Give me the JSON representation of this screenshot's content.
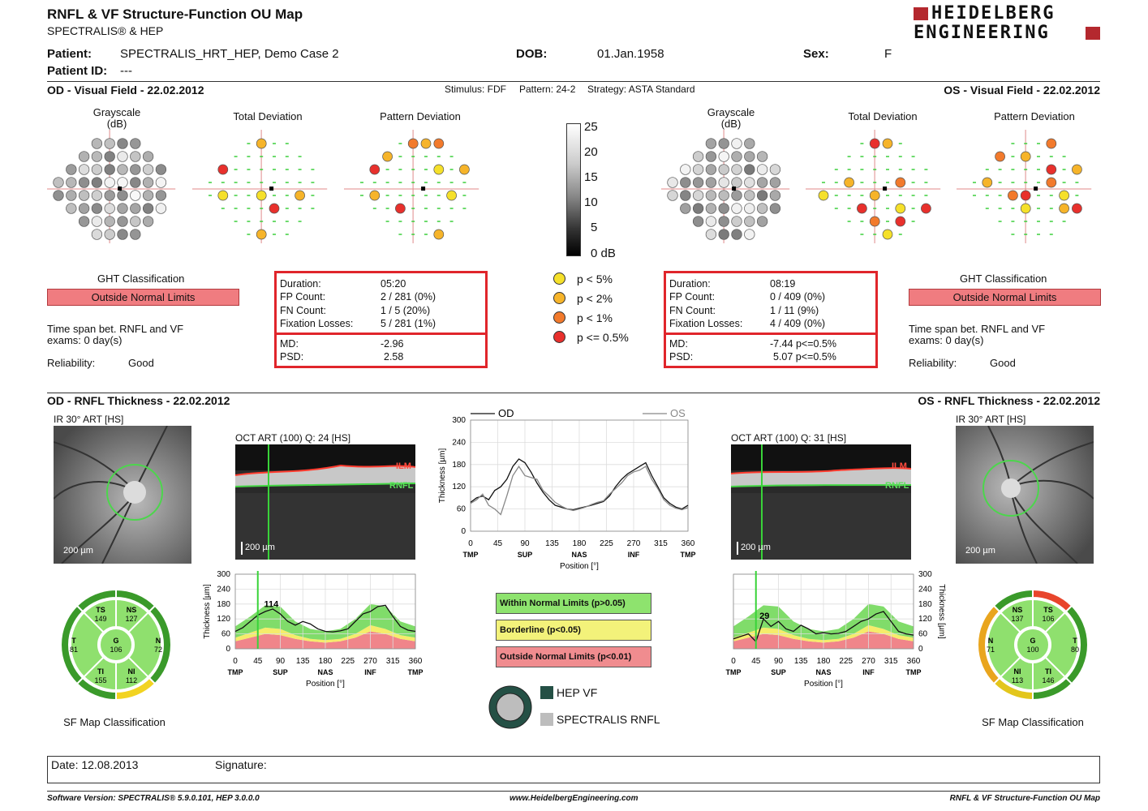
{
  "header": {
    "title": "RNFL & VF Structure-Function OU Map",
    "subtitle": "SPECTRALIS® & HEP",
    "logo_line1": "HEIDELBERG",
    "logo_line2": "ENGINEERING"
  },
  "patient": {
    "patient_label": "Patient:",
    "patient_value": "SPECTRALIS_HRT_HEP, Demo Case 2",
    "dob_label": "DOB:",
    "dob_value": "01.Jan.1958",
    "sex_label": "Sex:",
    "sex_value": "F",
    "id_label": "Patient ID:",
    "id_value": "---"
  },
  "vf_section": {
    "od_title": "OD - Visual Field - 22.02.2012",
    "os_title": "OS - Visual Field - 22.02.2012",
    "stimulus": "Stimulus: FDF",
    "pattern": "Pattern: 24-2",
    "strategy": "Strategy: ASTA Standard",
    "grayscale": "Grayscale",
    "grayscale_unit": "(dB)",
    "total_deviation": "Total Deviation",
    "pattern_deviation": "Pattern Deviation",
    "scale_labels": [
      "25",
      "20",
      "15",
      "10",
      "5",
      "0 dB"
    ]
  },
  "od_vf": {
    "ght_label": "GHT Classification",
    "ght_value": "Outside Normal Limits",
    "time_span": "Time span bet. RNFL and VF",
    "time_span_value": "exams: 0 day(s)",
    "reliability_label": "Reliability:",
    "reliability_value": "Good",
    "duration_label": "Duration:",
    "duration_value": "05:20",
    "fp_label": "FP Count:",
    "fp_value": "2 / 281  (0%)",
    "fn_label": "FN Count:",
    "fn_value": "1 / 5  (20%)",
    "fix_label": "Fixation Losses:",
    "fix_value": "5 / 281  (1%)",
    "md_label": "MD:",
    "md_value": "-2.96",
    "psd_label": "PSD:",
    "psd_value": "2.58"
  },
  "os_vf": {
    "ght_label": "GHT Classification",
    "ght_value": "Outside Normal Limits",
    "time_span": "Time span bet. RNFL and VF",
    "time_span_value": "exams: 0 day(s)",
    "reliability_label": "Reliability:",
    "reliability_value": "Good",
    "duration_label": "Duration:",
    "duration_value": "08:19",
    "fp_label": "FP Count:",
    "fp_value": "0 / 409  (0%)",
    "fn_label": "FN Count:",
    "fn_value": "1 / 11  (9%)",
    "fix_label": "Fixation Losses:",
    "fix_value": "4 / 409  (0%)",
    "md_label": "MD:",
    "md_value": "-7.44 p<=0.5%",
    "psd_label": "PSD:",
    "psd_value": "5.07 p<=0.5%"
  },
  "p_legend": [
    {
      "label": "p < 5%",
      "color": "#f5e02a"
    },
    {
      "label": "p < 2%",
      "color": "#f6b42a"
    },
    {
      "label": "p < 1%",
      "color": "#f27a2c"
    },
    {
      "label": "p <= 0.5%",
      "color": "#e8302c"
    }
  ],
  "rnfl_section": {
    "od_title": "OD - RNFL Thickness - 22.02.2012",
    "os_title": "OS - RNFL Thickness - 22.02.2012",
    "ir_label_od": "IR 30° ART [HS]",
    "ir_label_os": "IR 30° ART [HS]",
    "oct_label_od": "OCT ART (100) Q: 24 [HS]",
    "oct_label_os": "OCT ART (100) Q: 31 [HS]",
    "scale_bar": "200 µm",
    "ilm": "ILM",
    "rnfl": "RNFL",
    "y_axis": "Thickness [µm]",
    "x_axis": "Position [°]",
    "y_ticks": [
      "0",
      "60",
      "120",
      "180",
      "240",
      "300"
    ],
    "x_ticks": [
      "0",
      "45",
      "90",
      "135",
      "180",
      "225",
      "270",
      "315",
      "360"
    ],
    "sector_labels": [
      "TMP",
      "SUP",
      "NAS",
      "INF",
      "TMP"
    ],
    "od_peak": "114",
    "os_peak": "29",
    "legend_od": "OD",
    "legend_os": "OS"
  },
  "classification_legend": [
    {
      "label": "Within Normal Limits (p>0.05)",
      "color": "#8ee36e"
    },
    {
      "label": "Borderline (p<0.05)",
      "color": "#f3f27a"
    },
    {
      "label": "Outside Normal Limits (p<0.01)",
      "color": "#f08c8f"
    }
  ],
  "hep_legend": {
    "hep_vf": "HEP VF",
    "spectralis_rnfl": "SPECTRALIS RNFL",
    "hep_color": "#245045",
    "rnfl_color": "#bdbdbd"
  },
  "sf_od": {
    "caption": "SF Map Classification",
    "sectors": {
      "TS": {
        "label": "TS",
        "value": "149"
      },
      "NS": {
        "label": "NS",
        "value": "127"
      },
      "T": {
        "label": "T",
        "value": "81"
      },
      "G": {
        "label": "G",
        "value": "106"
      },
      "N": {
        "label": "N",
        "value": "72"
      },
      "TI": {
        "label": "TI",
        "value": "155"
      },
      "NI": {
        "label": "NI",
        "value": "112"
      }
    }
  },
  "sf_os": {
    "caption": "SF Map Classification",
    "sectors": {
      "NS": {
        "label": "NS",
        "value": "137"
      },
      "TS": {
        "label": "TS",
        "value": "106"
      },
      "N": {
        "label": "N",
        "value": "71"
      },
      "G": {
        "label": "G",
        "value": "100"
      },
      "T": {
        "label": "T",
        "value": "80"
      },
      "NI": {
        "label": "NI",
        "value": "113"
      },
      "TI": {
        "label": "TI",
        "value": "146"
      }
    }
  },
  "footer": {
    "date": "Date: 12.08.2013",
    "signature": "Signature:",
    "software": "Software Version: SPECTRALIS® 5.9.0.101, HEP 3.0.0.0",
    "website": "www.HeidelbergEngineering.com",
    "report_name": "RNFL & VF Structure-Function OU Map"
  },
  "chart_data": [
    {
      "type": "line",
      "title": "",
      "xlabel": "Position [°]",
      "ylabel": "Thickness [µm]",
      "xlim": [
        0,
        360
      ],
      "ylim": [
        0,
        300
      ],
      "series": [
        {
          "name": "OD",
          "x": [
            0,
            10,
            20,
            30,
            40,
            50,
            60,
            70,
            80,
            90,
            100,
            110,
            120,
            130,
            140,
            150,
            160,
            170,
            180,
            190,
            200,
            210,
            220,
            230,
            240,
            250,
            260,
            270,
            280,
            290,
            300,
            310,
            320,
            330,
            340,
            350,
            360
          ],
          "values": [
            78,
            90,
            95,
            85,
            110,
            120,
            140,
            175,
            195,
            185,
            160,
            130,
            105,
            85,
            70,
            65,
            60,
            58,
            62,
            66,
            70,
            75,
            80,
            95,
            120,
            140,
            155,
            165,
            175,
            185,
            150,
            120,
            90,
            75,
            65,
            60,
            70
          ]
        },
        {
          "name": "OS",
          "x": [
            0,
            10,
            20,
            30,
            40,
            50,
            60,
            70,
            80,
            90,
            100,
            110,
            120,
            130,
            140,
            150,
            160,
            170,
            180,
            190,
            200,
            210,
            220,
            230,
            240,
            250,
            260,
            270,
            280,
            290,
            300,
            310,
            320,
            330,
            340,
            350,
            360
          ],
          "values": [
            75,
            85,
            100,
            70,
            60,
            45,
            95,
            150,
            175,
            150,
            145,
            140,
            110,
            95,
            78,
            68,
            60,
            56,
            60,
            65,
            72,
            78,
            82,
            100,
            115,
            130,
            150,
            160,
            165,
            175,
            140,
            115,
            85,
            70,
            62,
            58,
            64
          ]
        }
      ]
    },
    {
      "type": "line",
      "title": "",
      "xlabel": "Position [°]",
      "ylabel": "Thickness [µm]",
      "xlim": [
        0,
        360
      ],
      "ylim": [
        0,
        300
      ],
      "series": [
        {
          "name": "",
          "x": [
            0,
            15,
            30,
            45,
            60,
            75,
            90,
            105,
            120,
            135,
            150,
            165,
            180,
            195,
            210,
            225,
            240,
            255,
            270,
            285,
            300,
            315,
            330,
            345,
            360
          ],
          "values": [
            70,
            85,
            110,
            135,
            150,
            160,
            140,
            110,
            95,
            110,
            100,
            80,
            70,
            68,
            72,
            80,
            110,
            140,
            150,
            170,
            175,
            130,
            90,
            75,
            70
          ]
        }
      ]
    },
    {
      "type": "line",
      "title": "",
      "xlabel": "Position [°]",
      "ylabel": "Thickness [µm]",
      "xlim": [
        0,
        360
      ],
      "ylim": [
        0,
        300
      ],
      "series": [
        {
          "name": "",
          "x": [
            0,
            15,
            30,
            45,
            60,
            75,
            90,
            105,
            120,
            135,
            150,
            165,
            180,
            195,
            210,
            225,
            240,
            255,
            270,
            285,
            300,
            315,
            330,
            345,
            360
          ],
          "values": [
            40,
            50,
            60,
            29,
            120,
            90,
            110,
            80,
            70,
            95,
            80,
            60,
            65,
            60,
            62,
            70,
            90,
            110,
            120,
            140,
            150,
            110,
            70,
            60,
            55
          ]
        }
      ]
    }
  ]
}
